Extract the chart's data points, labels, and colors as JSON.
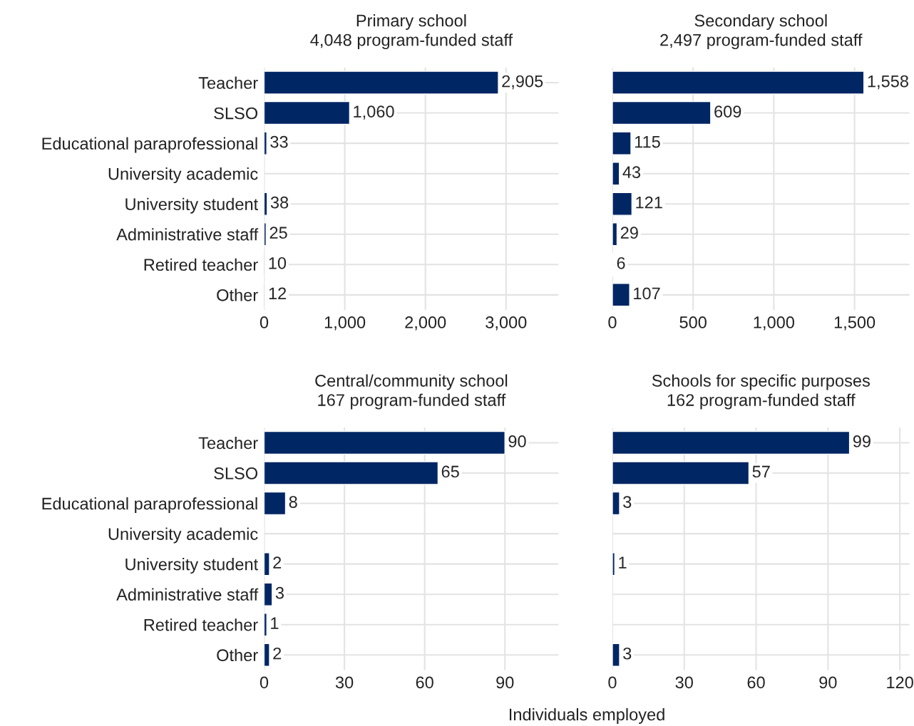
{
  "chart_data": [
    {
      "type": "bar",
      "orientation": "horizontal",
      "title": "Primary school",
      "subtitle": "4,048 program-funded staff",
      "categories": [
        "Teacher",
        "SLSO",
        "Educational paraprofessional",
        "University academic",
        "University student",
        "Administrative staff",
        "Retired teacher",
        "Other"
      ],
      "values": [
        2905,
        1060,
        33,
        null,
        38,
        25,
        10,
        12
      ],
      "value_labels": [
        "2,905",
        "1,060",
        "33",
        null,
        "38",
        "25",
        "10",
        "12"
      ],
      "color": "#002664",
      "xlim": [
        0,
        3650
      ],
      "xticks": [
        {
          "value": 0,
          "label": "0"
        },
        {
          "value": 1000,
          "label": "1,000"
        },
        {
          "value": 2000,
          "label": "2,000"
        },
        {
          "value": 3000,
          "label": "3,000"
        }
      ],
      "grid": true
    },
    {
      "type": "bar",
      "orientation": "horizontal",
      "title": "Secondary school",
      "subtitle": "2,497 program-funded staff",
      "categories": [
        null,
        null,
        null,
        null,
        null,
        null,
        null,
        null
      ],
      "values": [
        1558,
        609,
        115,
        43,
        121,
        29,
        6,
        107
      ],
      "value_labels": [
        "1,558",
        "609",
        "115",
        "43",
        "121",
        "29",
        "6",
        "107"
      ],
      "color": "#002664",
      "xlim": [
        0,
        1840
      ],
      "xticks": [
        0,
        500,
        {
          "value": 1000,
          "label": "1,000"
        },
        {
          "value": 1500,
          "label": "1,500"
        }
      ],
      "grid": true
    },
    {
      "type": "bar",
      "orientation": "horizontal",
      "title": "Central/community school",
      "subtitle": "167 program-funded staff",
      "categories": [
        "Teacher",
        "SLSO",
        "Educational paraprofessional",
        "University academic",
        "University student",
        "Administrative staff",
        "Retired teacher",
        "Other"
      ],
      "values": [
        90,
        65,
        8,
        null,
        2,
        3,
        1,
        2
      ],
      "value_labels": [
        "90",
        "65",
        "8",
        null,
        "2",
        "3",
        "1",
        "2"
      ],
      "color": "#002664",
      "xlim": [
        0,
        110
      ],
      "xticks": [
        0,
        30,
        60,
        90
      ],
      "grid": true
    },
    {
      "type": "bar",
      "orientation": "horizontal",
      "title": "Schools for specific purposes",
      "subtitle": "162 program-funded staff",
      "xlabel": "Individuals employed",
      "categories": [
        null,
        null,
        null,
        null,
        null,
        null,
        null,
        null
      ],
      "values": [
        99,
        57,
        3,
        null,
        1,
        null,
        null,
        3
      ],
      "value_labels": [
        "99",
        "57",
        "3",
        null,
        "1",
        null,
        null,
        "3"
      ],
      "color": "#002664",
      "xlim": [
        0,
        124
      ],
      "xticks": [
        0,
        30,
        60,
        90,
        120
      ],
      "grid": true
    }
  ]
}
